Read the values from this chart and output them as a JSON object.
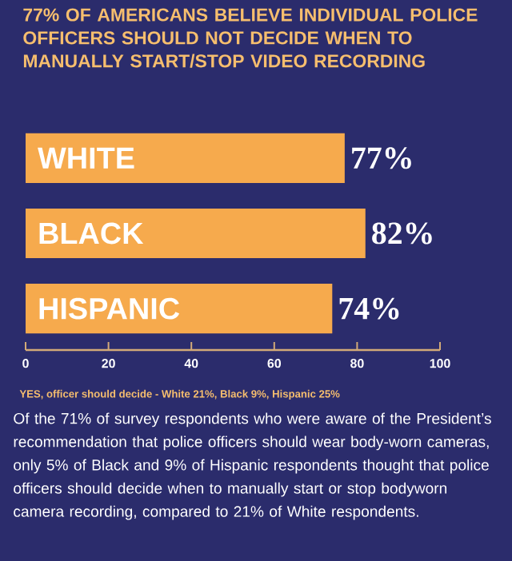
{
  "chart_data": {
    "type": "bar",
    "orientation": "horizontal",
    "title": "77% OF AMERICANS BELIEVE INDIVIDUAL POLICE OFFICERS SHOULD NOT DECIDE WHEN TO MANUALLY START/STOP VIDEO RECORDING",
    "categories": [
      "WHITE",
      "BLACK",
      "HISPANIC"
    ],
    "values": [
      77,
      82,
      74
    ],
    "value_labels": [
      "77%",
      "82%",
      "74%"
    ],
    "color": "#f6aa4d",
    "xlim": [
      0,
      100
    ],
    "xticks": [
      0,
      20,
      40,
      60,
      80,
      100
    ],
    "annotations": [
      "YES, officer should decide - White 21%, Black 9%, Hispanic 25%",
      "Of the 71% of survey respondents who were aware of the President’s recommendation that police officers should wear body-worn cameras, only 5% of Black and 9% of Hispanic respondents thought that police officers should decide when to manually start or stop bodyworn camera recording, compared to 21% of White respondents."
    ]
  }
}
